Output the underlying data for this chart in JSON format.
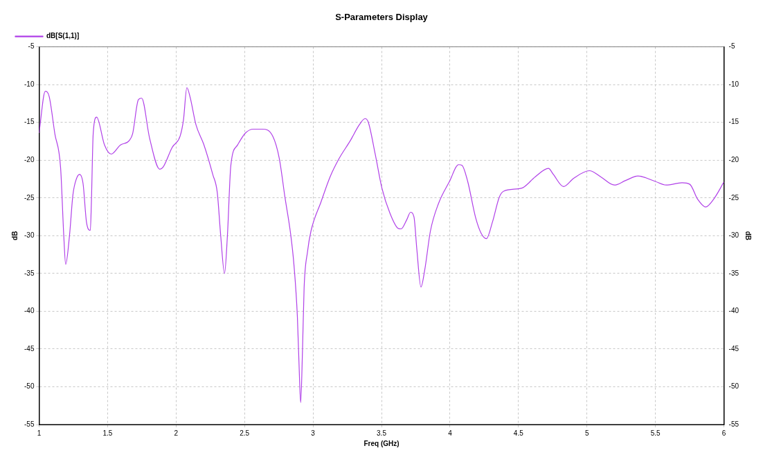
{
  "chart_data": {
    "type": "line",
    "title": "S-Parameters Display",
    "xlabel": "Freq (GHz)",
    "ylabel": "dB",
    "y2label": "dB",
    "xlim": [
      1,
      6
    ],
    "xticks": [
      1,
      1.5,
      2,
      2.5,
      3,
      3.5,
      4,
      4.5,
      5,
      5.5,
      6
    ],
    "ylim": [
      -55,
      -5
    ],
    "yticks": [
      -55,
      -50,
      -45,
      -40,
      -35,
      -30,
      -25,
      -20,
      -15,
      -10,
      -5
    ],
    "y2lim": [
      -55,
      -5
    ],
    "y2ticks": [
      -55,
      -50,
      -45,
      -40,
      -35,
      -30,
      -25,
      -20,
      -15,
      -10,
      -5
    ],
    "grid": true,
    "legend": "top left",
    "marker": "none",
    "line_style": "solid",
    "series": [
      {
        "name": "dB[S(1,1)]",
        "color": "#b040e8",
        "x": [
          1.0,
          1.045,
          1.074,
          1.115,
          1.157,
          1.181,
          1.194,
          1.222,
          1.247,
          1.272,
          1.296,
          1.321,
          1.346,
          1.374,
          1.382,
          1.395,
          1.42,
          1.478,
          1.527,
          1.593,
          1.659,
          1.683,
          1.725,
          1.749,
          1.807,
          1.881,
          1.906,
          1.972,
          2.03,
          2.054,
          2.079,
          2.103,
          2.145,
          2.202,
          2.268,
          2.301,
          2.326,
          2.354,
          2.375,
          2.4,
          2.449,
          2.507,
          2.565,
          2.63,
          2.705,
          2.754,
          2.795,
          2.836,
          2.861,
          2.886,
          2.902,
          2.91,
          2.923,
          2.935,
          2.96,
          2.985,
          3.059,
          3.125,
          3.19,
          3.273,
          3.339,
          3.38,
          3.404,
          3.454,
          3.503,
          3.561,
          3.619,
          3.643,
          3.684,
          3.712,
          3.737,
          3.758,
          3.788,
          3.816,
          3.857,
          3.915,
          3.997,
          4.063,
          4.088,
          4.129,
          4.187,
          4.228,
          4.266,
          4.31,
          4.36,
          4.393,
          4.524,
          4.623,
          4.719,
          4.755,
          4.829,
          4.903,
          5.018,
          5.1,
          5.2,
          5.282,
          5.372,
          5.496,
          5.578,
          5.694,
          5.751,
          5.809,
          5.867,
          5.924,
          6.0
        ],
        "values": [
          -16.4,
          -10.9,
          -11.6,
          -16.5,
          -21,
          -30.3,
          -33.8,
          -30,
          -24.6,
          -22.5,
          -21.9,
          -23.1,
          -28.2,
          -29.3,
          -25.5,
          -16.5,
          -14.3,
          -18,
          -19.2,
          -18,
          -17.4,
          -16.5,
          -12,
          -11.8,
          -17.1,
          -21.2,
          -20.9,
          -18.3,
          -16.8,
          -14.7,
          -10.4,
          -11.7,
          -15.3,
          -17.9,
          -21.9,
          -24.3,
          -30,
          -35,
          -30,
          -20.7,
          -18,
          -16.4,
          -15.9,
          -15.9,
          -16.8,
          -19.8,
          -24.9,
          -29.7,
          -33.9,
          -40.8,
          -49.2,
          -52.1,
          -45.3,
          -36.9,
          -32.1,
          -29.4,
          -25.5,
          -22.2,
          -19.8,
          -17.4,
          -15.3,
          -14.5,
          -15,
          -19.2,
          -23.7,
          -27,
          -29,
          -29.1,
          -27.9,
          -26.9,
          -27.5,
          -31.8,
          -36.8,
          -34.5,
          -29.4,
          -25.8,
          -22.8,
          -20.6,
          -20.7,
          -22.8,
          -27.6,
          -29.7,
          -30.4,
          -28.2,
          -24.9,
          -24.1,
          -23.7,
          -22.2,
          -21.1,
          -21.9,
          -23.5,
          -22.4,
          -21.4,
          -22.2,
          -23.3,
          -22.7,
          -22.1,
          -22.8,
          -23.3,
          -23,
          -23.2,
          -25.2,
          -26.2,
          -25.2,
          -22.9
        ]
      }
    ]
  }
}
